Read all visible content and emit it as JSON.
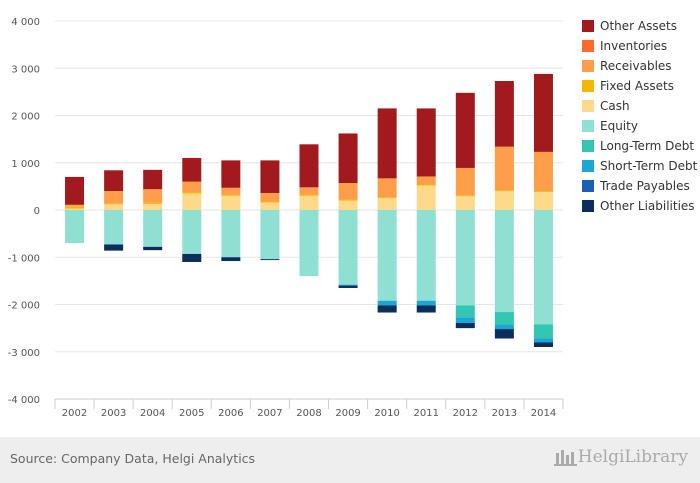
{
  "chart_data": {
    "type": "bar",
    "stacked": true,
    "title": "",
    "xlabel": "",
    "ylabel": "",
    "ylim": [
      -4000,
      4000
    ],
    "y_ticks": [
      -4000,
      -3000,
      -2000,
      -1000,
      0,
      1000,
      2000,
      3000,
      4000
    ],
    "y_tick_labels": [
      "-4 000",
      "-3 000",
      "-2 000",
      "-1 000",
      "0",
      "1 000",
      "2 000",
      "3 000",
      "4 000"
    ],
    "grid": true,
    "legend_position": "right",
    "categories": [
      "2002",
      "2003",
      "2004",
      "2005",
      "2006",
      "2007",
      "2008",
      "2009",
      "2010",
      "2011",
      "2012",
      "2013",
      "2014"
    ],
    "positive_series": [
      {
        "name": "Cash",
        "color": "#fdd98a",
        "values": [
          30,
          120,
          130,
          350,
          300,
          160,
          300,
          200,
          250,
          520,
          290,
          400,
          380
        ]
      },
      {
        "name": "Fixed Assets",
        "color": "#f5b800",
        "values": [
          50,
          20,
          20,
          30,
          20,
          20,
          20,
          20,
          20,
          20,
          20,
          20,
          20
        ]
      },
      {
        "name": "Receivables",
        "color": "#ff9e4a",
        "values": [
          30,
          260,
          290,
          220,
          150,
          180,
          160,
          350,
          400,
          170,
          580,
          920,
          830
        ]
      },
      {
        "name": "Inventories",
        "color": "#ff6a2a",
        "values": [
          0,
          0,
          0,
          0,
          0,
          0,
          0,
          0,
          0,
          0,
          0,
          0,
          0
        ]
      },
      {
        "name": "Other Assets",
        "color": "#a11a1e",
        "values": [
          590,
          440,
          410,
          500,
          580,
          690,
          910,
          1050,
          1480,
          1440,
          1590,
          1390,
          1650
        ]
      }
    ],
    "negative_series": [
      {
        "name": "Equity",
        "color": "#8fdfd3",
        "values": [
          -700,
          -730,
          -780,
          -930,
          -1000,
          -1040,
          -1400,
          -1580,
          -1920,
          -1920,
          -2020,
          -2160,
          -2420
        ]
      },
      {
        "name": "Long-Term Debt",
        "color": "#33c6b2",
        "values": [
          0,
          0,
          0,
          0,
          0,
          0,
          0,
          0,
          0,
          0,
          -250,
          -260,
          -300
        ]
      },
      {
        "name": "Short-Term Debt",
        "color": "#1aa8d2",
        "values": [
          0,
          0,
          0,
          0,
          0,
          0,
          0,
          -20,
          -100,
          -100,
          -120,
          -100,
          -80
        ]
      },
      {
        "name": "Trade Payables",
        "color": "#1a5fb4",
        "values": [
          0,
          0,
          0,
          0,
          0,
          0,
          0,
          0,
          0,
          0,
          0,
          0,
          0
        ]
      },
      {
        "name": "Other Liabilities",
        "color": "#0a2f5c",
        "values": [
          0,
          -130,
          -70,
          -170,
          -80,
          -20,
          0,
          -50,
          -150,
          -150,
          -110,
          -200,
          -100
        ]
      }
    ],
    "legend": [
      {
        "name": "Other Assets",
        "color": "#a11a1e"
      },
      {
        "name": "Inventories",
        "color": "#ff6a2a"
      },
      {
        "name": "Receivables",
        "color": "#ff9e4a"
      },
      {
        "name": "Fixed Assets",
        "color": "#f5b800"
      },
      {
        "name": "Cash",
        "color": "#fdd98a"
      },
      {
        "name": "Equity",
        "color": "#8fdfd3"
      },
      {
        "name": "Long-Term Debt",
        "color": "#33c6b2"
      },
      {
        "name": "Short-Term Debt",
        "color": "#1aa8d2"
      },
      {
        "name": "Trade Payables",
        "color": "#1a5fb4"
      },
      {
        "name": "Other Liabilities",
        "color": "#0a2f5c"
      }
    ]
  },
  "footer": {
    "source": "Source: Company Data, Helgi Analytics",
    "logo_text": "HelgiLibrary"
  }
}
